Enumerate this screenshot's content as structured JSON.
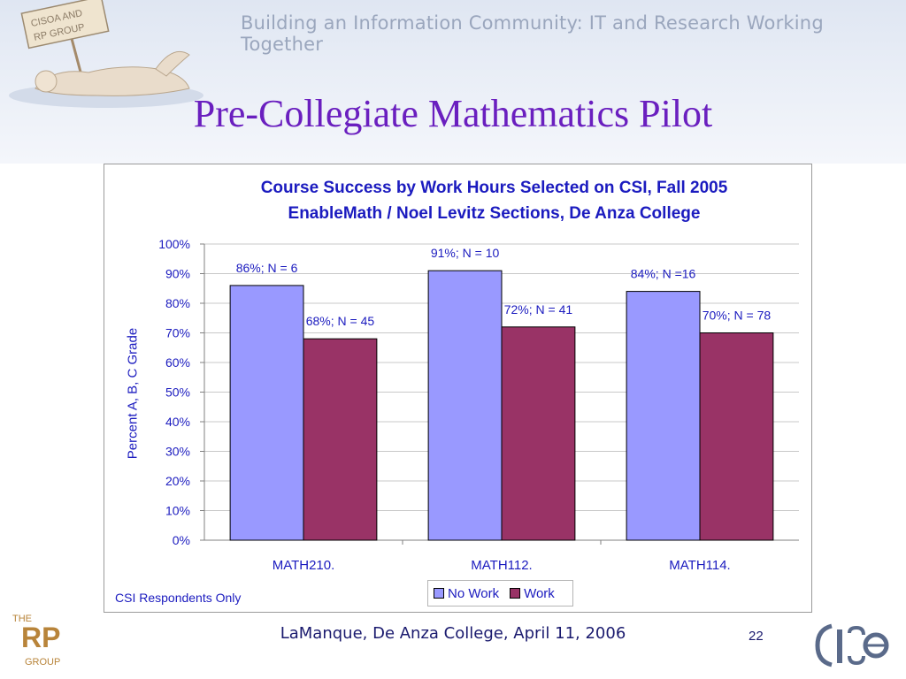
{
  "banner": {
    "tagline": "Building an Information Community:  IT and Research Working Together",
    "sign_line1": "CISOA AND",
    "sign_line2": "RP GROUP"
  },
  "slide": {
    "title": "Pre-Collegiate Mathematics Pilot",
    "footer": "LaManque, De Anza College, April 11, 2006",
    "page_number": "22",
    "logo_rp": {
      "the": "THE",
      "rp": "RP",
      "group": "GROUP"
    }
  },
  "chart_data": {
    "type": "bar",
    "title": "Course Success by Work Hours Selected on CSI, Fall 2005",
    "subtitle": "EnableMath / Noel Levitz Sections, De Anza College",
    "xlabel": "",
    "ylabel": "Percent A, B, C Grade",
    "categories": [
      "MATH210.",
      "MATH112.",
      "MATH114."
    ],
    "ylim": [
      0,
      100
    ],
    "yticks": [
      "0%",
      "10%",
      "20%",
      "30%",
      "40%",
      "50%",
      "60%",
      "70%",
      "80%",
      "90%",
      "100%"
    ],
    "grid": true,
    "legend_position": "bottom",
    "series": [
      {
        "name": "No Work",
        "color": "#9999ff",
        "values": [
          86,
          91,
          84
        ],
        "labels": [
          "86%; N = 6",
          "91%; N = 10",
          "84%;  N =16"
        ]
      },
      {
        "name": "Work",
        "color": "#993366",
        "values": [
          68,
          72,
          70
        ],
        "labels": [
          "68%; N = 45",
          "72%; N = 41",
          "70%;  N = 78"
        ]
      }
    ],
    "annotation": "CSI Respondents Only"
  }
}
